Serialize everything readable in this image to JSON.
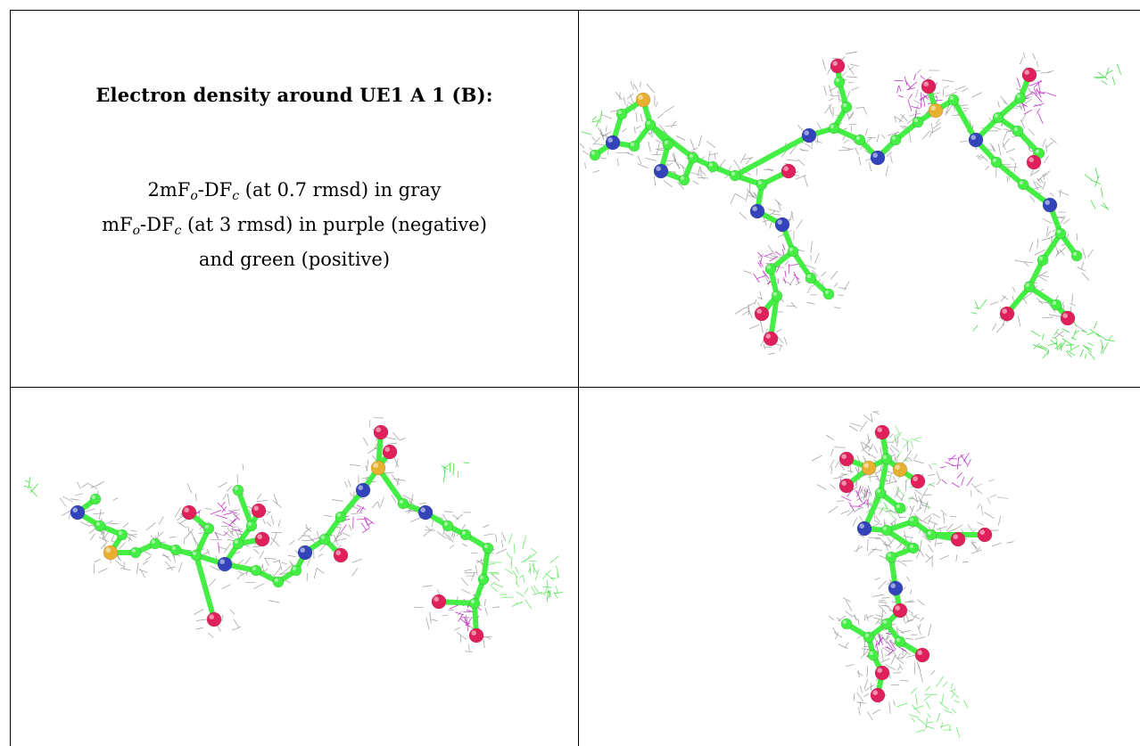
{
  "title": "Electron density around UE1 A 1 (B):",
  "legend": {
    "line1_prefix": "2mF",
    "line1_sub1": "o",
    "line1_mid": "-DF",
    "line1_sub2": "c",
    "line1_suffix": " (at 0.7 rmsd) in gray",
    "line2_prefix": "mF",
    "line2_sub1": "o",
    "line2_mid": "-DF",
    "line2_sub2": "c",
    "line2_suffix": " (at 3 rmsd) in purple (negative)",
    "line3": "and green (positive)"
  },
  "colors": {
    "mesh_gray": "#8a8a8a",
    "mesh_purple": "#c020c8",
    "mesh_green": "#33dd33",
    "carbon": "#44ee44",
    "nitrogen": "#3344bb",
    "oxygen": "#e0205a",
    "sulfur": "#e8b030"
  },
  "views": [
    {
      "name": "view-top-right"
    },
    {
      "name": "view-bottom-left"
    },
    {
      "name": "view-bottom-right"
    }
  ]
}
